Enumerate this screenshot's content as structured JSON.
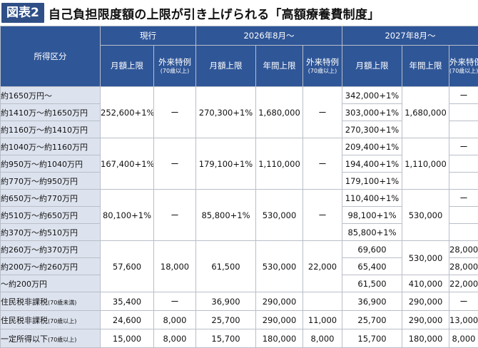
{
  "title": {
    "badge": "図表2",
    "text": "自己負担限度額の上限が引き上げられる「高額療養費制度」"
  },
  "headers": {
    "category": "所得区分",
    "groups": [
      "現行",
      "2026年8月〜",
      "2027年8月〜"
    ],
    "monthly": "月額上限",
    "annual": "年間上限",
    "outpatient": "外来特例",
    "outpatient_note": "(70歳以上)"
  },
  "rows": [
    {
      "label": "約1650万円〜",
      "note": "",
      "y27m": "342,000+1%",
      "y27o": "ー"
    },
    {
      "label": "約1410万〜約1650万円",
      "note": "",
      "y27m": "303,000+1%"
    },
    {
      "label": "約1160万〜約1410万円",
      "note": "",
      "y27m": "270,300+1%"
    },
    {
      "label": "約1040万〜約1160万円",
      "note": "",
      "y27m": "209,400+1%",
      "y27o": "ー"
    },
    {
      "label": "約950万〜約1040万円",
      "note": "",
      "y27m": "194,400+1%"
    },
    {
      "label": "約770万〜約950万円",
      "note": "",
      "y27m": "179,100+1%"
    },
    {
      "label": "約650万〜約770万円",
      "note": "",
      "y27m": "110,400+1%",
      "y27o": "ー"
    },
    {
      "label": "約510万〜約650万円",
      "note": "",
      "y27m": "98,100+1%"
    },
    {
      "label": "約370万〜約510万円",
      "note": "",
      "y27m": "85,800+1%"
    },
    {
      "label": "約260万〜約370万円",
      "note": "",
      "y27m": "69,600",
      "y27o": "28,000"
    },
    {
      "label": "約200万〜約260万円",
      "note": "",
      "y27m": "65,400",
      "y27o": "28,000"
    },
    {
      "label": "〜約200万円",
      "note": "",
      "y27m": "61,500",
      "y27a": "410,000",
      "y27o": "22,000"
    },
    {
      "label": "住民税非課税",
      "note": "(70歳未満)",
      "cm": "35,400",
      "co": "ー",
      "y26m": "36,900",
      "y26a": "290,000",
      "y27m": "36,900",
      "y27a": "290,000",
      "y27o": "ー"
    },
    {
      "label": "住民税非課税",
      "note": "(70歳以上)",
      "cm": "24,600",
      "co": "8,000",
      "y26m": "25,700",
      "y26a": "290,000",
      "y26o": "11,000",
      "y27m": "25,700",
      "y27a": "290,000",
      "y27o": "13,000"
    },
    {
      "label": "一定所得以下",
      "note": "(70歳以上)",
      "cm": "15,000",
      "co": "8,000",
      "y26m": "15,700",
      "y26a": "180,000",
      "y26o": "8,000",
      "y27m": "15,700",
      "y27a": "180,000",
      "y27o": "8,000"
    }
  ],
  "groups": {
    "g1": {
      "cm": "252,600+1%",
      "co": "ー",
      "y26m": "270,300+1%",
      "y26a": "1,680,000",
      "y26o": "ー",
      "y27a": "1,680,000"
    },
    "g2": {
      "cm": "167,400+1%",
      "co": "ー",
      "y26m": "179,100+1%",
      "y26a": "1,110,000",
      "y26o": "ー",
      "y27a": "1,110,000"
    },
    "g3": {
      "cm": "80,100+1%",
      "co": "ー",
      "y26m": "85,800+1%",
      "y26a": "530,000",
      "y26o": "ー",
      "y27a": "530,000"
    },
    "g4": {
      "cm": "57,600",
      "co": "18,000",
      "y26m": "61,500",
      "y26a": "530,000",
      "y26o": "22,000",
      "y27a": "530,000"
    }
  }
}
